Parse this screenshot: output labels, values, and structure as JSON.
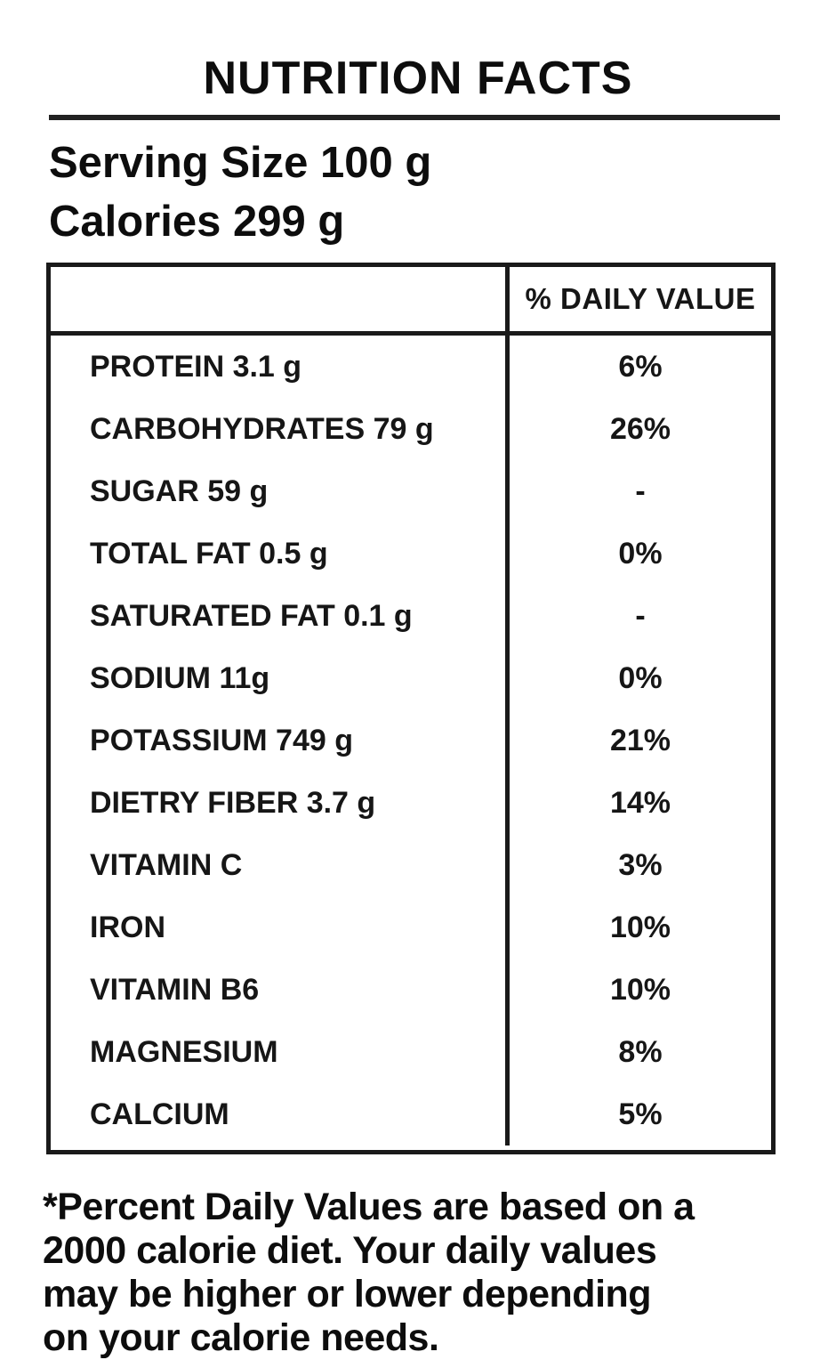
{
  "title": "NUTRITION FACTS",
  "serving_size": "Serving Size 100 g",
  "calories": "Calories 299 g",
  "table": {
    "value_column_header": "% DAILY VALUE",
    "rows": [
      {
        "label": "PROTEIN 3.1 g",
        "value": "6%"
      },
      {
        "label": "CARBOHYDRATES 79 g",
        "value": "26%"
      },
      {
        "label": "SUGAR 59 g",
        "value": "-"
      },
      {
        "label": "TOTAL FAT 0.5 g",
        "value": "0%"
      },
      {
        "label": "SATURATED FAT 0.1 g",
        "value": "-"
      },
      {
        "label": "SODIUM 11g",
        "value": "0%"
      },
      {
        "label": "POTASSIUM 749 g",
        "value": "21%"
      },
      {
        "label": "DIETRY FIBER 3.7 g",
        "value": "14%"
      },
      {
        "label": "VITAMIN C",
        "value": "3%"
      },
      {
        "label": "IRON",
        "value": "10%"
      },
      {
        "label": "VITAMIN B6",
        "value": "10%"
      },
      {
        "label": "MAGNESIUM",
        "value": "8%"
      },
      {
        "label": "CALCIUM",
        "value": "5%"
      }
    ]
  },
  "footnote": "*Percent Daily Values are based on a\n2000 calorie diet. Your daily values\nmay be higher or lower depending\non your calorie needs."
}
